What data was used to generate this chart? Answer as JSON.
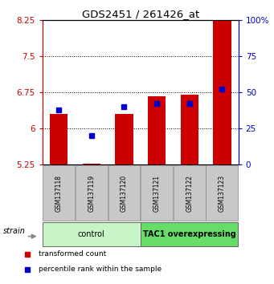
{
  "title": "GDS2451 / 261426_at",
  "samples": [
    "GSM137118",
    "GSM137119",
    "GSM137120",
    "GSM137121",
    "GSM137122",
    "GSM137123"
  ],
  "red_values": [
    6.3,
    5.27,
    6.3,
    6.67,
    6.7,
    8.35
  ],
  "blue_values": [
    38,
    20,
    40,
    42,
    42,
    52
  ],
  "ymin": 5.25,
  "ymax": 8.25,
  "yticks": [
    5.25,
    6.0,
    6.75,
    7.5,
    8.25
  ],
  "ytick_labels": [
    "5.25",
    "6",
    "6.75",
    "7.5",
    "8.25"
  ],
  "y2min": 0,
  "y2max": 100,
  "y2ticks": [
    0,
    25,
    50,
    75,
    100
  ],
  "y2tick_labels": [
    "0",
    "25",
    "50",
    "75",
    "100%"
  ],
  "groups": [
    {
      "label": "control",
      "indices": [
        0,
        1,
        2
      ],
      "color": "#c8f5c8"
    },
    {
      "label": "TAC1 overexpressing",
      "indices": [
        3,
        4,
        5
      ],
      "color": "#66dd66"
    }
  ],
  "red_color": "#cc0000",
  "blue_color": "#0000cc",
  "bar_width": 0.55,
  "legend_items": [
    {
      "color": "#cc0000",
      "label": "transformed count"
    },
    {
      "color": "#0000cc",
      "label": "percentile rank within the sample"
    }
  ],
  "strain_label": "strain",
  "bg_color": "#ffffff",
  "plot_bg": "#ffffff",
  "sample_area_bg": "#c8c8c8"
}
